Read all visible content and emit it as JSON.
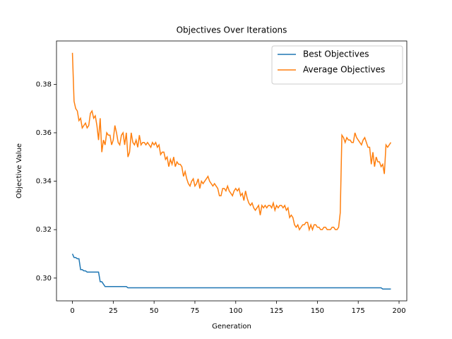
{
  "chart_data": {
    "type": "line",
    "title": "Objectives Over Iterations",
    "xlabel": "Generation",
    "ylabel": "Objective Value",
    "x": [
      0,
      1,
      2,
      3,
      4,
      5,
      6,
      7,
      8,
      9,
      10,
      11,
      12,
      13,
      14,
      15,
      16,
      17,
      18,
      19,
      20,
      21,
      22,
      23,
      24,
      25,
      26,
      27,
      28,
      29,
      30,
      31,
      32,
      33,
      34,
      35,
      36,
      37,
      38,
      39,
      40,
      41,
      42,
      43,
      44,
      45,
      46,
      47,
      48,
      49,
      50,
      51,
      52,
      53,
      54,
      55,
      56,
      57,
      58,
      59,
      60,
      61,
      62,
      63,
      64,
      65,
      66,
      67,
      68,
      69,
      70,
      71,
      72,
      73,
      74,
      75,
      76,
      77,
      78,
      79,
      80,
      81,
      82,
      83,
      84,
      85,
      86,
      87,
      88,
      89,
      90,
      91,
      92,
      93,
      94,
      95,
      96,
      97,
      98,
      99,
      100,
      101,
      102,
      103,
      104,
      105,
      106,
      107,
      108,
      109,
      110,
      111,
      112,
      113,
      114,
      115,
      116,
      117,
      118,
      119,
      120,
      121,
      122,
      123,
      124,
      125,
      126,
      127,
      128,
      129,
      130,
      131,
      132,
      133,
      134,
      135,
      136,
      137,
      138,
      139,
      140,
      141,
      142,
      143,
      144,
      145,
      146,
      147,
      148,
      149,
      150,
      151,
      152,
      153,
      154,
      155,
      156,
      157,
      158,
      159,
      160,
      161,
      162,
      163,
      164,
      165,
      166,
      167,
      168,
      169,
      170,
      171,
      172,
      173,
      174,
      175,
      176,
      177,
      178,
      179,
      180,
      181,
      182,
      183,
      184,
      185,
      186,
      187,
      188,
      189,
      190,
      191,
      192,
      193,
      194,
      195
    ],
    "series": [
      {
        "name": "Best Objectives",
        "color": "#1f77b4",
        "values": [
          0.31,
          0.3085,
          0.3085,
          0.308,
          0.308,
          0.3035,
          0.3035,
          0.303,
          0.303,
          0.3025,
          0.3025,
          0.3025,
          0.3025,
          0.3025,
          0.3025,
          0.3025,
          0.3025,
          0.2985,
          0.2985,
          0.2975,
          0.2965,
          0.2965,
          0.2965,
          0.2965,
          0.2965,
          0.2965,
          0.2965,
          0.2965,
          0.2965,
          0.2965,
          0.2965,
          0.2965,
          0.2965,
          0.2965,
          0.296,
          0.296,
          0.296,
          0.296,
          0.296,
          0.296,
          0.296,
          0.296,
          0.296,
          0.296,
          0.296,
          0.296,
          0.296,
          0.296,
          0.296,
          0.296,
          0.296,
          0.296,
          0.296,
          0.296,
          0.296,
          0.296,
          0.296,
          0.296,
          0.296,
          0.296,
          0.296,
          0.296,
          0.296,
          0.296,
          0.296,
          0.296,
          0.296,
          0.296,
          0.296,
          0.296,
          0.296,
          0.296,
          0.296,
          0.296,
          0.296,
          0.296,
          0.296,
          0.296,
          0.296,
          0.296,
          0.296,
          0.296,
          0.296,
          0.296,
          0.296,
          0.296,
          0.296,
          0.296,
          0.296,
          0.296,
          0.296,
          0.296,
          0.296,
          0.296,
          0.296,
          0.296,
          0.296,
          0.296,
          0.296,
          0.296,
          0.296,
          0.296,
          0.296,
          0.296,
          0.296,
          0.296,
          0.296,
          0.296,
          0.296,
          0.296,
          0.296,
          0.296,
          0.296,
          0.296,
          0.296,
          0.296,
          0.296,
          0.296,
          0.296,
          0.296,
          0.296,
          0.296,
          0.296,
          0.296,
          0.296,
          0.296,
          0.296,
          0.296,
          0.296,
          0.296,
          0.296,
          0.296,
          0.296,
          0.296,
          0.296,
          0.296,
          0.296,
          0.296,
          0.296,
          0.296,
          0.296,
          0.296,
          0.296,
          0.296,
          0.296,
          0.296,
          0.296,
          0.296,
          0.296,
          0.296,
          0.296,
          0.296,
          0.296,
          0.296,
          0.296,
          0.296,
          0.296,
          0.296,
          0.296,
          0.296,
          0.296,
          0.296,
          0.296,
          0.296,
          0.296,
          0.296,
          0.296,
          0.296,
          0.296,
          0.296,
          0.296,
          0.296,
          0.296,
          0.296,
          0.296,
          0.296,
          0.296,
          0.296,
          0.296,
          0.296,
          0.296,
          0.296,
          0.296,
          0.296,
          0.296,
          0.296,
          0.296,
          0.296,
          0.296,
          0.296,
          0.2955,
          0.2955,
          0.2955,
          0.2955,
          0.2955,
          0.2955
        ]
      },
      {
        "name": "Average Objectives",
        "color": "#ff7f0e",
        "values": [
          0.393,
          0.373,
          0.37,
          0.369,
          0.365,
          0.366,
          0.362,
          0.363,
          0.364,
          0.362,
          0.363,
          0.368,
          0.369,
          0.366,
          0.367,
          0.363,
          0.357,
          0.366,
          0.352,
          0.357,
          0.355,
          0.36,
          0.359,
          0.359,
          0.355,
          0.357,
          0.363,
          0.36,
          0.356,
          0.355,
          0.359,
          0.36,
          0.355,
          0.36,
          0.35,
          0.352,
          0.36,
          0.356,
          0.355,
          0.357,
          0.354,
          0.359,
          0.355,
          0.356,
          0.356,
          0.355,
          0.356,
          0.355,
          0.354,
          0.356,
          0.355,
          0.356,
          0.354,
          0.355,
          0.351,
          0.352,
          0.352,
          0.349,
          0.35,
          0.346,
          0.349,
          0.347,
          0.35,
          0.346,
          0.348,
          0.347,
          0.347,
          0.346,
          0.342,
          0.344,
          0.341,
          0.339,
          0.338,
          0.34,
          0.341,
          0.338,
          0.339,
          0.341,
          0.337,
          0.34,
          0.339,
          0.34,
          0.341,
          0.342,
          0.34,
          0.339,
          0.338,
          0.339,
          0.338,
          0.337,
          0.334,
          0.334,
          0.337,
          0.337,
          0.336,
          0.338,
          0.336,
          0.335,
          0.334,
          0.336,
          0.337,
          0.336,
          0.337,
          0.334,
          0.335,
          0.332,
          0.336,
          0.333,
          0.331,
          0.33,
          0.331,
          0.329,
          0.328,
          0.329,
          0.33,
          0.326,
          0.33,
          0.329,
          0.33,
          0.329,
          0.33,
          0.33,
          0.329,
          0.331,
          0.328,
          0.33,
          0.329,
          0.33,
          0.33,
          0.329,
          0.33,
          0.328,
          0.329,
          0.325,
          0.326,
          0.325,
          0.322,
          0.321,
          0.322,
          0.32,
          0.321,
          0.322,
          0.322,
          0.323,
          0.323,
          0.32,
          0.322,
          0.32,
          0.322,
          0.322,
          0.321,
          0.321,
          0.32,
          0.32,
          0.321,
          0.321,
          0.32,
          0.32,
          0.32,
          0.321,
          0.321,
          0.32,
          0.32,
          0.321,
          0.327,
          0.359,
          0.358,
          0.356,
          0.358,
          0.357,
          0.357,
          0.356,
          0.356,
          0.36,
          0.358,
          0.357,
          0.356,
          0.355,
          0.357,
          0.358,
          0.356,
          0.354,
          0.354,
          0.347,
          0.352,
          0.346,
          0.35,
          0.348,
          0.348,
          0.346,
          0.347,
          0.343,
          0.355,
          0.354,
          0.355,
          0.356
        ]
      }
    ],
    "xlim": [
      -9.75,
      204.75
    ],
    "ylim": [
      0.2906,
      0.3979
    ],
    "xticks": [
      0,
      25,
      50,
      75,
      100,
      125,
      150,
      175,
      200
    ],
    "yticks": [
      {
        "value": 0.3,
        "label": "0.30"
      },
      0.32,
      0.34,
      0.36,
      0.38
    ],
    "legend": "upper right"
  }
}
